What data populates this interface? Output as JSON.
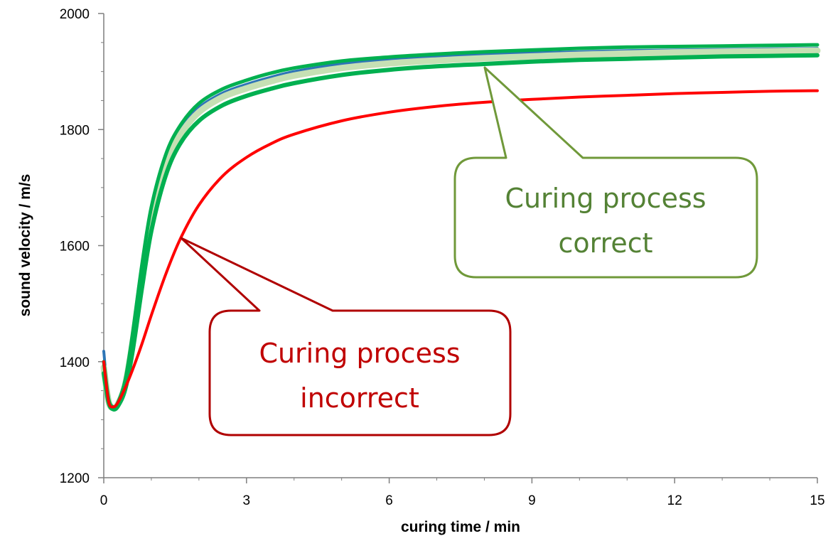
{
  "chart_data": {
    "type": "line",
    "xlabel": "curing time / min",
    "ylabel": "sound velocity / m/s",
    "xlim": [
      0,
      15
    ],
    "ylim": [
      1200,
      2000
    ],
    "x_ticks": [
      0,
      3,
      6,
      9,
      12,
      15
    ],
    "y_ticks": [
      1200,
      1400,
      1600,
      1800,
      2000
    ],
    "grid": false,
    "series": [
      {
        "color": "#2e75b6",
        "x": [
          0,
          0.1,
          0.2,
          0.3,
          0.45,
          0.6,
          0.8,
          1.0,
          1.3,
          1.6,
          2.0,
          2.5,
          3.0,
          3.5,
          4.0,
          5.0,
          6.0,
          7.0,
          8.0,
          9.0,
          10.0,
          11.0,
          12.0,
          13.0,
          14.0,
          15.0
        ],
        "y": [
          1418,
          1335,
          1322,
          1328,
          1365,
          1440,
          1560,
          1660,
          1750,
          1800,
          1838,
          1863,
          1878,
          1890,
          1900,
          1913,
          1920,
          1925,
          1929,
          1932,
          1934,
          1936,
          1937,
          1938,
          1939,
          1940
        ]
      },
      {
        "color": "#c6e0b4",
        "x": [
          0,
          0.1,
          0.2,
          0.3,
          0.45,
          0.6,
          0.8,
          1.0,
          1.3,
          1.6,
          2.0,
          2.5,
          3.0,
          3.5,
          4.0,
          5.0,
          6.0,
          7.0,
          8.0,
          9.0,
          10.0,
          11.0,
          12.0,
          13.0,
          14.0,
          15.0
        ],
        "y": [
          1390,
          1332,
          1320,
          1327,
          1360,
          1430,
          1545,
          1645,
          1738,
          1790,
          1830,
          1856,
          1871,
          1883,
          1893,
          1906,
          1914,
          1919,
          1923,
          1926,
          1929,
          1931,
          1933,
          1934,
          1935,
          1936
        ]
      },
      {
        "color": "#00b050",
        "x": [
          0,
          0.1,
          0.2,
          0.3,
          0.45,
          0.6,
          0.8,
          1.0,
          1.3,
          1.6,
          2.0,
          2.5,
          3.0,
          3.5,
          4.0,
          5.0,
          6.0,
          7.0,
          8.0,
          9.0,
          10.0,
          11.0,
          12.0,
          13.0,
          14.0,
          15.0
        ],
        "y": [
          1400,
          1336,
          1322,
          1330,
          1368,
          1445,
          1565,
          1666,
          1756,
          1806,
          1845,
          1870,
          1885,
          1897,
          1906,
          1918,
          1925,
          1930,
          1934,
          1937,
          1940,
          1942,
          1943,
          1944,
          1945,
          1946
        ]
      },
      {
        "color": "#00b050",
        "x": [
          0,
          0.1,
          0.2,
          0.3,
          0.45,
          0.6,
          0.8,
          1.0,
          1.3,
          1.6,
          2.0,
          2.5,
          3.0,
          3.5,
          4.0,
          5.0,
          6.0,
          7.0,
          8.0,
          9.0,
          10.0,
          11.0,
          12.0,
          13.0,
          14.0,
          15.0
        ],
        "y": [
          1380,
          1330,
          1318,
          1324,
          1352,
          1415,
          1525,
          1625,
          1720,
          1775,
          1815,
          1842,
          1858,
          1870,
          1880,
          1894,
          1903,
          1909,
          1913,
          1917,
          1920,
          1922,
          1924,
          1926,
          1927,
          1928
        ]
      },
      {
        "color": "#ff0000",
        "x": [
          0,
          0.1,
          0.2,
          0.3,
          0.45,
          0.6,
          0.8,
          1.0,
          1.3,
          1.6,
          2.0,
          2.5,
          3.0,
          3.5,
          4.0,
          5.0,
          6.0,
          7.0,
          8.0,
          9.0,
          10.0,
          11.0,
          12.0,
          13.0,
          14.0,
          15.0
        ],
        "y": [
          1400,
          1332,
          1322,
          1330,
          1355,
          1385,
          1430,
          1480,
          1550,
          1610,
          1670,
          1720,
          1752,
          1775,
          1792,
          1815,
          1830,
          1840,
          1847,
          1852,
          1856,
          1859,
          1862,
          1864,
          1866,
          1867
        ]
      }
    ],
    "annotations": [
      {
        "line1": "Curing process",
        "line2": "correct",
        "color": "#548235"
      },
      {
        "line1": "Curing process",
        "line2": "incorrect",
        "color": "#c00000"
      }
    ]
  }
}
